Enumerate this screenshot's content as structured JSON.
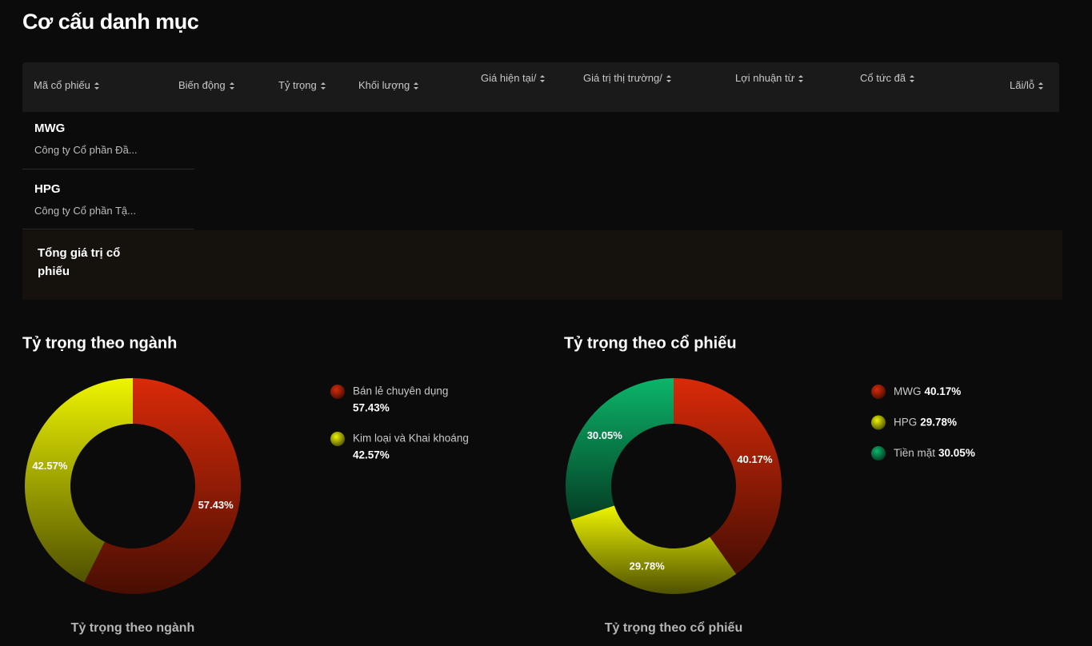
{
  "header": {
    "title": "Cơ cấu danh mục"
  },
  "table": {
    "columns": [
      "Mã cổ phiếu",
      "Biến động",
      "Tỷ trọng",
      "Khối lượng",
      "Giá hiện tại/",
      "Giá trị thị trường/",
      "Lợi nhuận từ",
      "Cổ tức đã",
      "Lãi/lỗ"
    ],
    "rows": [
      [
        "MWG",
        "Công ty Cổ phần Đầ..."
      ],
      [
        "HPG",
        "Công ty Cổ phần Tậ..."
      ]
    ],
    "total_label": "Tổng giá trị cổ phiếu"
  },
  "chart_data": [
    {
      "type": "donut",
      "title": "Tỷ trọng theo ngành",
      "caption": "Tỷ trọng theo ngành",
      "categories": [
        "Bán lẻ chuyên dụng",
        "Kim loại và Khai khoáng"
      ],
      "values": [
        57.43,
        42.57
      ],
      "value_labels": [
        "57.43%",
        "42.57%"
      ],
      "colors": [
        "#d92a08",
        "#eef500"
      ]
    },
    {
      "type": "donut",
      "title": "Tỷ trọng theo cổ phiếu",
      "caption": "Tỷ trọng theo cổ phiếu",
      "categories": [
        "MWG",
        "HPG",
        "Tiền mặt"
      ],
      "values": [
        40.17,
        29.78,
        30.05
      ],
      "value_labels": [
        "40.17%",
        "29.78%",
        "30.05%"
      ],
      "colors": [
        "#d92a08",
        "#eef500",
        "#0cb56a"
      ]
    }
  ]
}
